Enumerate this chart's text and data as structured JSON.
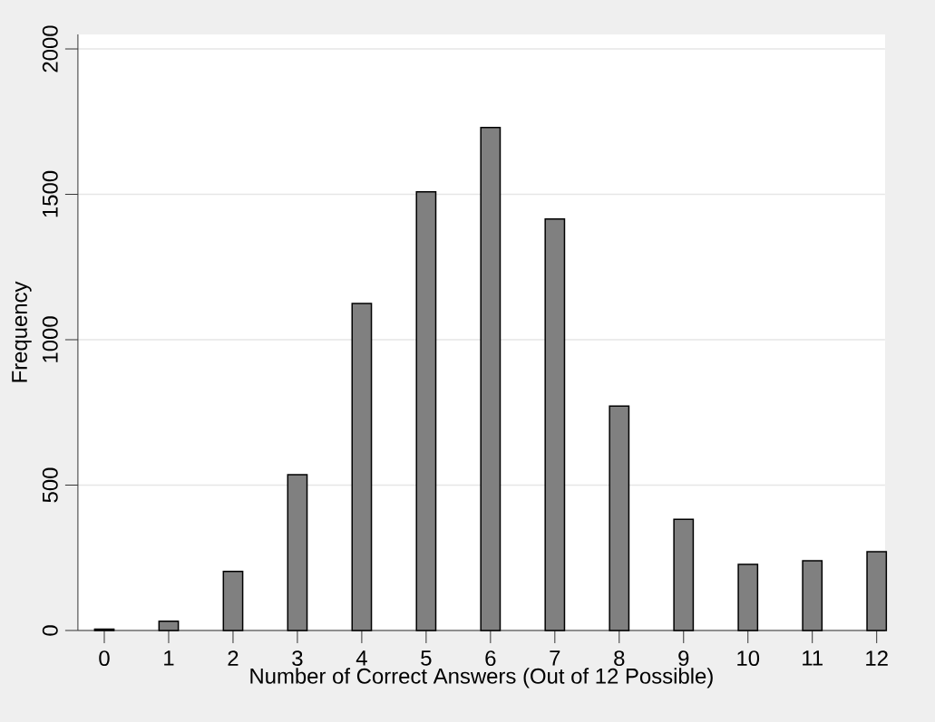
{
  "chart_data": {
    "type": "bar",
    "xlabel": "Number of Correct Answers (Out of 12 Possible)",
    "ylabel": "Frequency",
    "categories": [
      "0",
      "1",
      "2",
      "3",
      "4",
      "5",
      "6",
      "7",
      "8",
      "9",
      "10",
      "11",
      "12"
    ],
    "values": [
      5,
      32,
      203,
      536,
      1125,
      1509,
      1730,
      1415,
      772,
      382,
      227,
      240,
      271
    ],
    "color": "#808080",
    "ylim": [
      0,
      2050
    ],
    "yticks": [
      0,
      500,
      1000,
      1500,
      2000
    ],
    "grid": "y"
  }
}
